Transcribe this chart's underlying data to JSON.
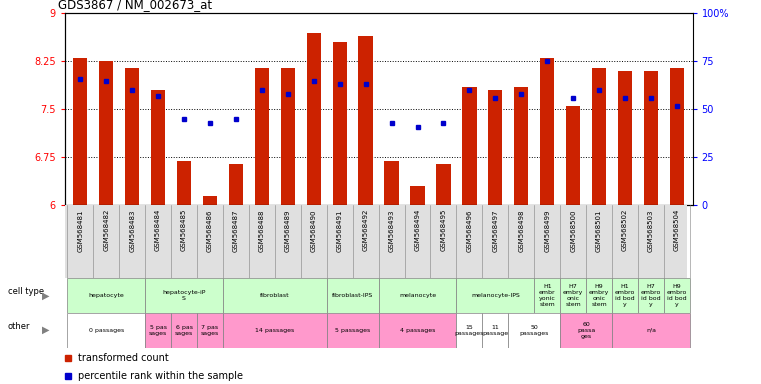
{
  "title": "GDS3867 / NM_002673_at",
  "samples": [
    "GSM568481",
    "GSM568482",
    "GSM568483",
    "GSM568484",
    "GSM568485",
    "GSM568486",
    "GSM568487",
    "GSM568488",
    "GSM568489",
    "GSM568490",
    "GSM568491",
    "GSM568492",
    "GSM568493",
    "GSM568494",
    "GSM568495",
    "GSM568496",
    "GSM568497",
    "GSM568498",
    "GSM568499",
    "GSM568500",
    "GSM568501",
    "GSM568502",
    "GSM568503",
    "GSM568504"
  ],
  "transformed_count": [
    8.3,
    8.25,
    8.15,
    7.8,
    6.7,
    6.15,
    6.65,
    8.15,
    8.15,
    8.7,
    8.55,
    8.65,
    6.7,
    6.3,
    6.65,
    7.85,
    7.8,
    7.85,
    8.3,
    7.55,
    8.15,
    8.1,
    8.1,
    8.15
  ],
  "percentile": [
    66,
    65,
    60,
    57,
    45,
    43,
    45,
    60,
    58,
    65,
    63,
    63,
    43,
    41,
    43,
    60,
    56,
    58,
    75,
    56,
    60,
    56,
    56,
    52
  ],
  "ymin": 6.0,
  "ymax": 9.0,
  "yticks": [
    6.0,
    6.75,
    7.5,
    8.25,
    9.0
  ],
  "ytick_labels": [
    "6",
    "6.75",
    "7.5",
    "8.25",
    "9"
  ],
  "pct_ticks": [
    0,
    25,
    50,
    75,
    100
  ],
  "pct_tick_labels": [
    "0",
    "25",
    "50",
    "75",
    "100%"
  ],
  "bar_color": "#CC2200",
  "dot_color": "#0000CC",
  "cell_type_groups": [
    {
      "label": "hepatocyte",
      "start": 0,
      "end": 2,
      "color": "#ccffcc"
    },
    {
      "label": "hepatocyte-iP\nS",
      "start": 3,
      "end": 5,
      "color": "#ccffcc"
    },
    {
      "label": "fibroblast",
      "start": 6,
      "end": 9,
      "color": "#ccffcc"
    },
    {
      "label": "fibroblast-IPS",
      "start": 10,
      "end": 11,
      "color": "#ccffcc"
    },
    {
      "label": "melanocyte",
      "start": 12,
      "end": 14,
      "color": "#ccffcc"
    },
    {
      "label": "melanocyte-IPS",
      "start": 15,
      "end": 17,
      "color": "#ccffcc"
    },
    {
      "label": "H1\nembr\nyonic\nstem",
      "start": 18,
      "end": 18,
      "color": "#ccffcc"
    },
    {
      "label": "H7\nembry\nonic\nstem",
      "start": 19,
      "end": 19,
      "color": "#ccffcc"
    },
    {
      "label": "H9\nembry\nonic\nstem",
      "start": 20,
      "end": 20,
      "color": "#ccffcc"
    },
    {
      "label": "H1\nembro\nid bod\ny",
      "start": 21,
      "end": 21,
      "color": "#ccffcc"
    },
    {
      "label": "H7\nembro\nid bod\ny",
      "start": 22,
      "end": 22,
      "color": "#ccffcc"
    },
    {
      "label": "H9\nembro\nid bod\ny",
      "start": 23,
      "end": 23,
      "color": "#ccffcc"
    }
  ],
  "other_groups": [
    {
      "label": "0 passages",
      "start": 0,
      "end": 2,
      "color": "#ffffff"
    },
    {
      "label": "5 pas\nsages",
      "start": 3,
      "end": 3,
      "color": "#ff99cc"
    },
    {
      "label": "6 pas\nsages",
      "start": 4,
      "end": 4,
      "color": "#ff99cc"
    },
    {
      "label": "7 pas\nsages",
      "start": 5,
      "end": 5,
      "color": "#ff99cc"
    },
    {
      "label": "14 passages",
      "start": 6,
      "end": 9,
      "color": "#ff99cc"
    },
    {
      "label": "5 passages",
      "start": 10,
      "end": 11,
      "color": "#ff99cc"
    },
    {
      "label": "4 passages",
      "start": 12,
      "end": 14,
      "color": "#ff99cc"
    },
    {
      "label": "15\npassages",
      "start": 15,
      "end": 15,
      "color": "#ffffff"
    },
    {
      "label": "11\npassage",
      "start": 16,
      "end": 16,
      "color": "#ffffff"
    },
    {
      "label": "50\npassages",
      "start": 17,
      "end": 18,
      "color": "#ffffff"
    },
    {
      "label": "60\npassa\nges",
      "start": 19,
      "end": 20,
      "color": "#ff99cc"
    },
    {
      "label": "n/a",
      "start": 21,
      "end": 23,
      "color": "#ff99cc"
    }
  ],
  "legend_bar_label": "transformed count",
  "legend_dot_label": "percentile rank within the sample"
}
